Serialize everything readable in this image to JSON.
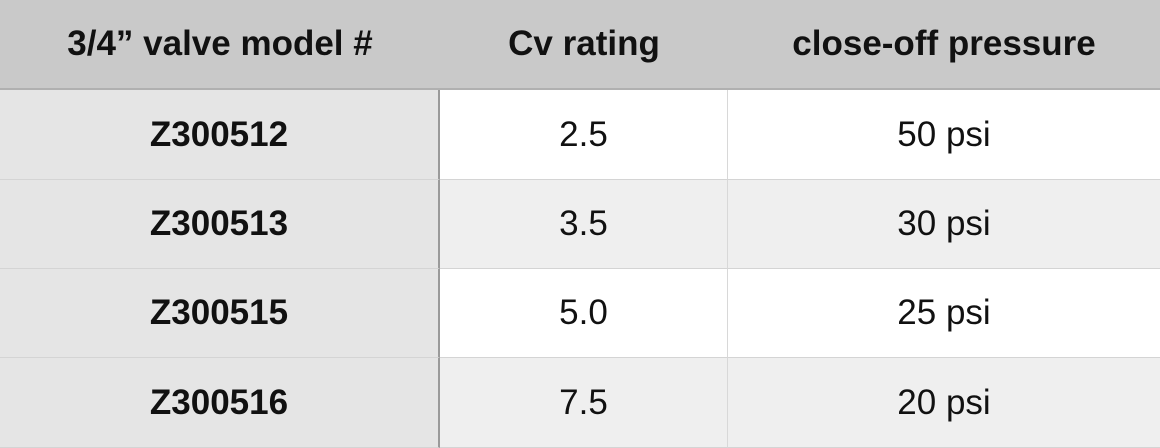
{
  "table": {
    "header": [
      "3/4” valve model #",
      "Cv rating",
      "close-off pressure"
    ],
    "rows": [
      [
        "Z300512",
        "2.5",
        "50 psi"
      ],
      [
        "Z300513",
        "3.5",
        "30 psi"
      ],
      [
        "Z300515",
        "5.0",
        "25 psi"
      ],
      [
        "Z300516",
        "7.5",
        "20 psi"
      ]
    ]
  }
}
